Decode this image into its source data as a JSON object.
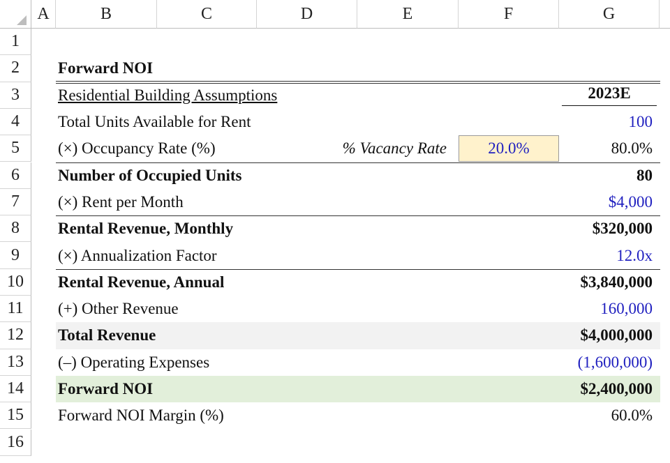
{
  "column_headers": [
    "A",
    "B",
    "C",
    "D",
    "E",
    "F",
    "G"
  ],
  "row_numbers": [
    1,
    2,
    3,
    4,
    5,
    6,
    7,
    8,
    9,
    10,
    11,
    12,
    13,
    14,
    15,
    16
  ],
  "title": "Forward NOI",
  "section_header": "Residential Building Assumptions",
  "year_header": "2023E",
  "vacancy_label": "% Vacancy Rate",
  "vacancy_value": "20.0%",
  "rows": [
    {
      "label": "Total Units Available for Rent",
      "value": "100"
    },
    {
      "label": "(×) Occupancy Rate (%)",
      "value": "80.0%"
    },
    {
      "label": "Number of Occupied Units",
      "value": "80"
    },
    {
      "label": "(×) Rent per Month",
      "value": "$4,000"
    },
    {
      "label": "Rental Revenue, Monthly",
      "value": "$320,000"
    },
    {
      "label": "(×) Annualization Factor",
      "value": "12.0x"
    },
    {
      "label": "Rental Revenue, Annual",
      "value": "$3,840,000"
    },
    {
      "label": "(+) Other Revenue",
      "value": "160,000"
    },
    {
      "label": "Total Revenue",
      "value": "$4,000,000"
    },
    {
      "label": "(–) Operating Expenses",
      "value": "(1,600,000)"
    },
    {
      "label": "Forward NOI",
      "value": "$2,400,000"
    },
    {
      "label": "Forward NOI Margin (%)",
      "value": "60.0%"
    }
  ]
}
